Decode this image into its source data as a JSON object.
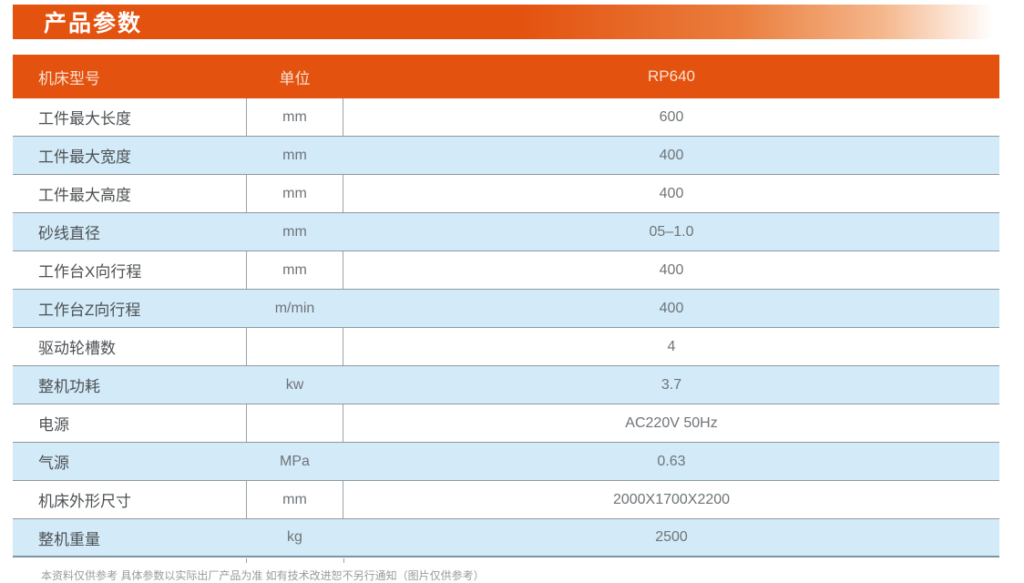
{
  "section": {
    "title": "产品参数"
  },
  "colors": {
    "accent_orange": "#e3520f",
    "row_blue": "#d3eaf8",
    "header_text": "#f9e2d2",
    "label_text": "#4d5154",
    "value_text": "#6f7478",
    "border_gray": "#8f999e"
  },
  "table": {
    "header": {
      "model_label": "机床型号",
      "unit_label": "单位",
      "model_value": "RP640"
    },
    "rows": [
      {
        "label": "工件最大长度",
        "unit": "mm",
        "value": "600"
      },
      {
        "label": "工件最大宽度",
        "unit": "mm",
        "value": "400"
      },
      {
        "label": "工件最大高度",
        "unit": "mm",
        "value": "400"
      },
      {
        "label": "砂线直径",
        "unit": "mm",
        "value": "05–1.0"
      },
      {
        "label": "工作台X向行程",
        "unit": "mm",
        "value": "400"
      },
      {
        "label": "工作台Z向行程",
        "unit": "m/min",
        "value": "400"
      },
      {
        "label": "驱动轮槽数",
        "unit": "",
        "value": "4"
      },
      {
        "label": "整机功耗",
        "unit": "kw",
        "value": "3.7"
      },
      {
        "label": "电源",
        "unit": "",
        "value": "AC220V 50Hz"
      },
      {
        "label": "气源",
        "unit": "MPa",
        "value": "0.63"
      },
      {
        "label": "机床外形尺寸",
        "unit": "mm",
        "value": "2000X1700X2200"
      },
      {
        "label": "整机重量",
        "unit": "kg",
        "value": "2500"
      }
    ]
  },
  "footnote": {
    "text": "本资料仅供参考 具体参数以实际出厂产品为准 如有技术改进恕不另行通知（图片仅供参考）"
  }
}
